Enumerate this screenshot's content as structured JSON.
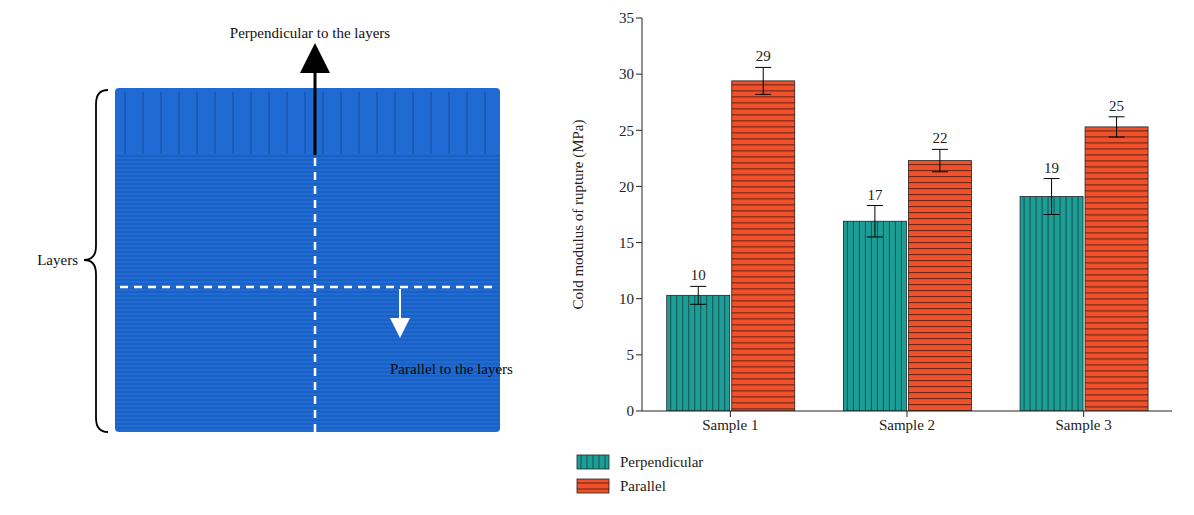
{
  "diagram": {
    "perpendicular_label": "Perpendicular to the layers",
    "parallel_label": "Parallel to the layers",
    "layers_label": "Layers"
  },
  "chart_data": {
    "type": "bar",
    "categories": [
      "Sample 1",
      "Sample 2",
      "Sample 3"
    ],
    "y_label": "Cold modulus of rupture (MPa)",
    "ylim": [
      0,
      35
    ],
    "yticks": [
      0,
      5,
      10,
      15,
      20,
      25,
      30,
      35
    ],
    "data_labels": true,
    "legend": "bottom",
    "series": [
      {
        "name": "Perpendicular",
        "color": "#1a9e96",
        "values": [
          10.3,
          16.9,
          19.1
        ],
        "value_labels": [
          "10",
          "17",
          "19"
        ],
        "errors": [
          0.8,
          1.4,
          1.6
        ]
      },
      {
        "name": "Parallel",
        "color": "#f0502a",
        "values": [
          29.4,
          22.3,
          25.3
        ],
        "value_labels": [
          "29",
          "22",
          "25"
        ],
        "errors": [
          1.2,
          1.0,
          0.9
        ]
      }
    ]
  }
}
